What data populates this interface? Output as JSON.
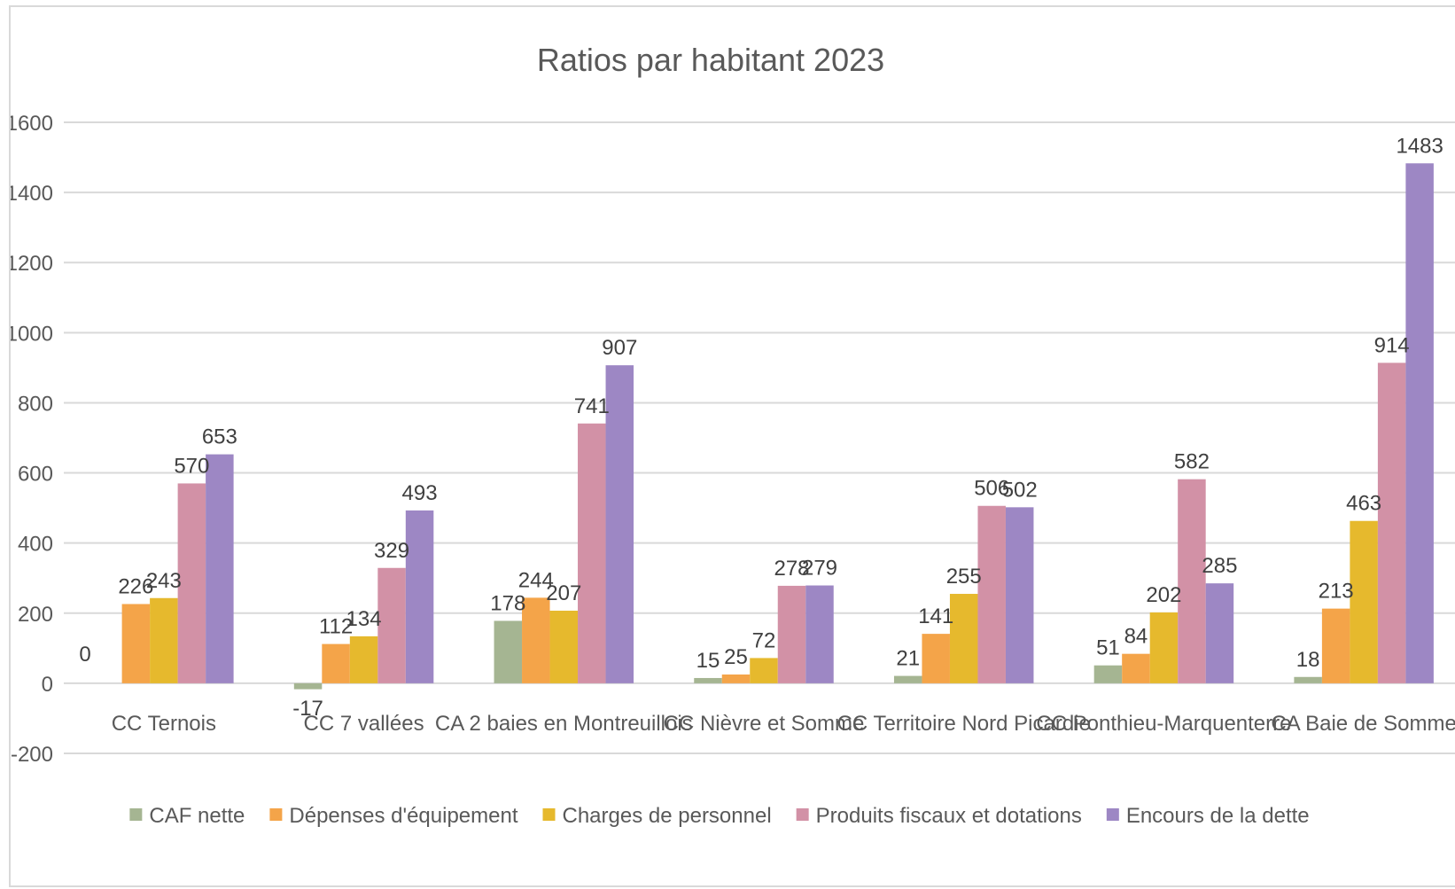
{
  "chart_data": {
    "type": "bar",
    "title": "Ratios par habitant 2023",
    "xlabel": "",
    "ylabel": "",
    "ylim": [
      -200,
      1600
    ],
    "yticks": [
      -200,
      0,
      200,
      400,
      600,
      800,
      1000,
      1200,
      1400,
      1600
    ],
    "grid": true,
    "legend_position": "bottom",
    "categories": [
      "CC Ternois",
      "CC 7 vallées",
      "CA 2 baies en Montreuillois",
      "CC Nièvre et Somme",
      "CC Territoire Nord Picardie",
      "CC Ponthieu-Marquenterre",
      "CA Baie de Somme"
    ],
    "series": [
      {
        "name": "CAF nette",
        "color": "#a5b592",
        "values": [
          0,
          -17,
          178,
          15,
          21,
          51,
          18
        ]
      },
      {
        "name": "Dépenses d'équipement",
        "color": "#f4a449",
        "values": [
          226,
          112,
          244,
          25,
          141,
          84,
          213
        ]
      },
      {
        "name": "Charges de personnel",
        "color": "#e6b92d",
        "values": [
          243,
          134,
          207,
          72,
          255,
          202,
          463
        ]
      },
      {
        "name": "Produits fiscaux et dotations",
        "color": "#d291a6",
        "values": [
          570,
          329,
          741,
          278,
          506,
          582,
          914
        ]
      },
      {
        "name": "Encours de la dette",
        "color": "#9d87c4",
        "values": [
          653,
          493,
          907,
          279,
          502,
          285,
          1483
        ]
      }
    ]
  }
}
